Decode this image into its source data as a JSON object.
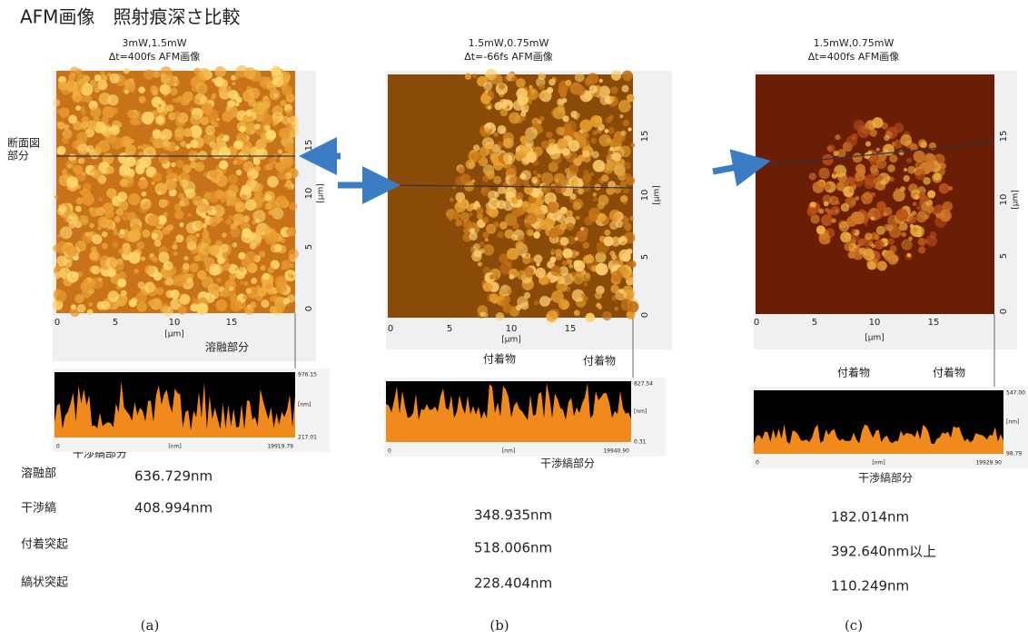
{
  "title": "AFM画像　照射痕深さ比較",
  "panels": [
    {
      "header": [
        "3mW,1.5mW",
        "Δt=400fs AFM画像"
      ],
      "x_ticks": [
        "0",
        "5",
        "10",
        "15"
      ],
      "x_unit": "[μm]",
      "y_ticks": [
        "0",
        "5",
        "10",
        "15"
      ],
      "y_unit": "[μm]",
      "annotations": [
        "断面図",
        "部分",
        "溶融部分",
        "干渉縞部分"
      ],
      "profile_labels": [
        "976.15",
        "[nm]",
        "217.01",
        "0",
        "[nm]",
        "19919.79"
      ],
      "values": [
        "636.729nm",
        "408.994nm"
      ],
      "caption": "(a)"
    },
    {
      "header": [
        "1.5mW,0.75mW",
        "Δt=-66fs AFM画像"
      ],
      "x_ticks": [
        "0",
        "5",
        "10",
        "15"
      ],
      "x_unit": "[μm]",
      "y_ticks": [
        "0",
        "5",
        "10",
        "15"
      ],
      "y_unit": "[μm]",
      "annotations": [
        "付着物",
        "付着物",
        "干渉縞部分"
      ],
      "profile_labels": [
        "827.54",
        "[nm]",
        "0.31",
        "0",
        "[nm]",
        "19940.90"
      ],
      "values": [
        "348.935nm",
        "518.006nm",
        "228.404nm"
      ],
      "caption": "(b)"
    },
    {
      "header": [
        "1.5mW,0.75mW",
        "Δt=400fs AFM画像"
      ],
      "x_ticks": [
        "0",
        "5",
        "10",
        "15"
      ],
      "x_unit": "[μm]",
      "y_ticks": [
        "0",
        "5",
        "10",
        "15"
      ],
      "y_unit": "[μm]",
      "annotations": [
        "付着物",
        "付着物",
        "干渉縞部分"
      ],
      "profile_labels": [
        "547.00",
        "[nm]",
        "98.79",
        "0",
        "[nm]",
        "19929.90"
      ],
      "values": [
        "182.014nm",
        "392.640nm以上",
        "110.249nm"
      ],
      "caption": "(c)"
    }
  ],
  "measure_labels": [
    "溶融部",
    "干渉縞",
    "付着突起",
    "縞状突起"
  ]
}
